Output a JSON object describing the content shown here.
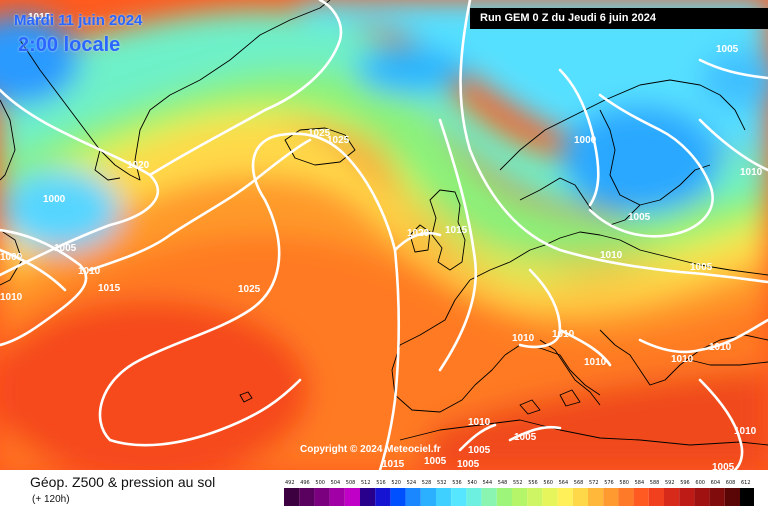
{
  "header": {
    "date": "Mardi 11 juin 2024",
    "time": "2:00 locale",
    "run": "Run GEM 0 Z du Jeudi 6 juin 2024"
  },
  "copyright": "Copyright © 2024 Meteociel.fr",
  "legend": {
    "title": "Géop. Z500 & pression au sol",
    "subtitle": "(+ 120h)",
    "scale_values": [
      "492",
      "496",
      "500",
      "504",
      "508",
      "512",
      "516",
      "520",
      "524",
      "528",
      "532",
      "536",
      "540",
      "544",
      "548",
      "552",
      "556",
      "560",
      "564",
      "568",
      "572",
      "576",
      "580",
      "584",
      "588",
      "592",
      "596",
      "600",
      "604",
      "608",
      "612"
    ],
    "scale_colors": [
      "#3c0040",
      "#5a005e",
      "#7a0080",
      "#a000a6",
      "#c000c6",
      "#28008c",
      "#1414d2",
      "#0050ff",
      "#1a86ff",
      "#2ab0ff",
      "#40d0ff",
      "#56e6ff",
      "#6ef0e0",
      "#8af5b0",
      "#9df57a",
      "#b4f56a",
      "#cef564",
      "#e6f55c",
      "#fff05a",
      "#ffd84a",
      "#ffb83a",
      "#ff9a30",
      "#ff7a28",
      "#ff5a22",
      "#f0401e",
      "#d82a1a",
      "#be1a16",
      "#a01212",
      "#800c0c",
      "#5a0606",
      "#000000"
    ]
  },
  "isobars": {
    "labels": [
      "1015",
      "1020",
      "1000",
      "1005",
      "1010",
      "1000",
      "1010",
      "1015",
      "1025",
      "1025",
      "1025",
      "1020",
      "1015",
      "1000",
      "1005",
      "1010",
      "1005",
      "1005",
      "1010",
      "1010",
      "1010",
      "1010",
      "1010",
      "1010",
      "1010",
      "1010",
      "1015",
      "1005",
      "1005",
      "1005",
      "1005",
      "1005"
    ]
  },
  "colors": {
    "run_box_bg": "#000000",
    "title_blue": "#2a66ff",
    "isobar": "#ffffff",
    "coast": "#000000"
  }
}
